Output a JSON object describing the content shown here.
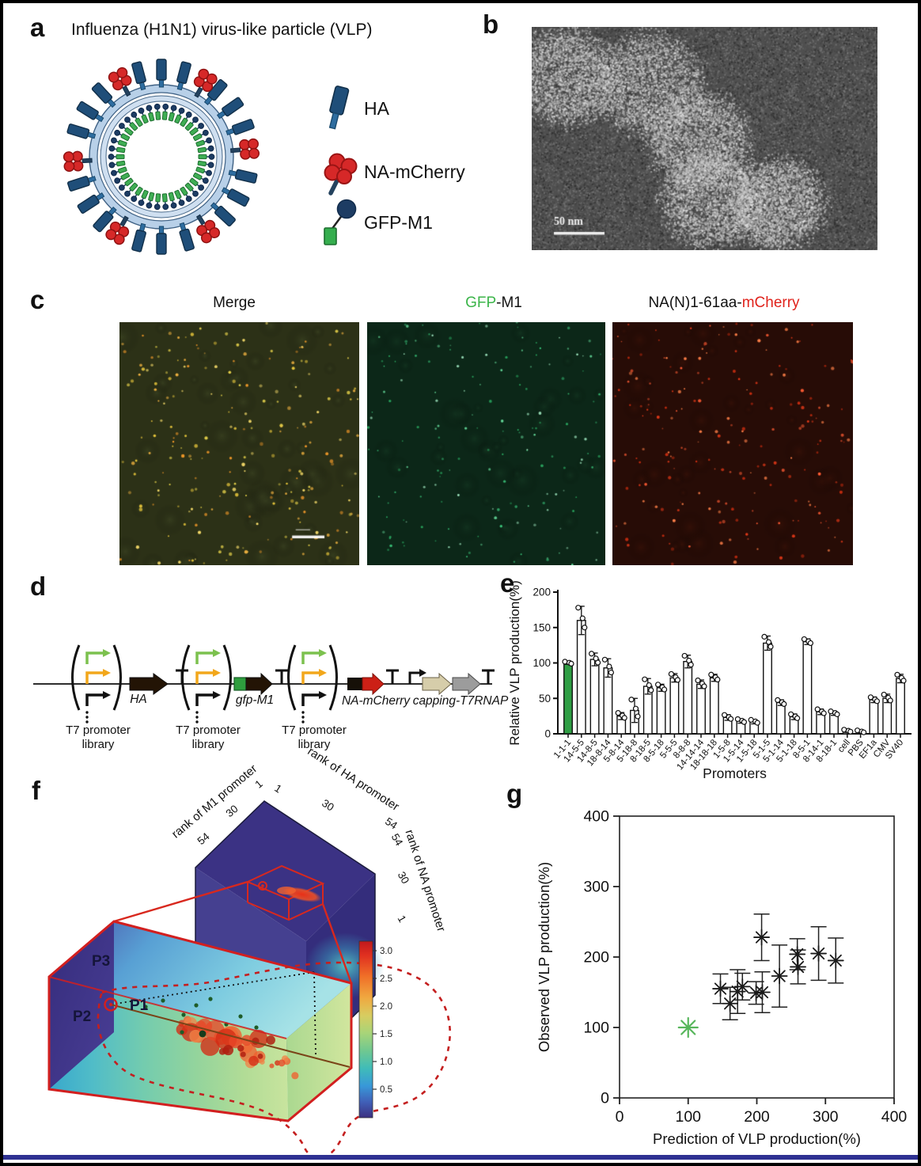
{
  "figure": {
    "panels": {
      "a": {
        "letter": "a",
        "title": "Influenza (H1N1) virus-like particle (VLP)",
        "legend": [
          {
            "icon": "ha-spike-icon",
            "label": "HA"
          },
          {
            "icon": "na-cluster-icon",
            "label": "NA-mCherry"
          },
          {
            "icon": "gfp-m1-icon",
            "label": "GFP-M1"
          }
        ]
      },
      "b": {
        "letter": "b",
        "scalebar": "50 nm"
      },
      "c": {
        "letter": "c",
        "titles": {
          "merge": "Merge",
          "gfp": "GFP",
          "gfp_suffix": "-M1",
          "na_prefix": "NA(N)1-61aa-",
          "mcherry": "mCherry"
        }
      },
      "d": {
        "letter": "d",
        "library_line1": "T7 promoter",
        "library_line2": "library",
        "genes": {
          "ha": "HA",
          "gfp_m1": "gfp-M1",
          "na_mcherry": "NA-mCherry",
          "capping": "capping-T7RNAP"
        }
      },
      "e": {
        "letter": "e"
      },
      "f": {
        "letter": "f",
        "axis_m1": "rank of M1 promoter",
        "axis_ha": "rank of HA promoter",
        "axis_na": "rank of NA promoter",
        "m1_ticks": [
          "1",
          "30",
          "54"
        ],
        "ha_ticks": [
          "1",
          "30",
          "54"
        ],
        "na_ticks": [
          "54",
          "30",
          "1"
        ],
        "colorbar_ticks": [
          "3.0",
          "2.5",
          "2.0",
          "1.5",
          "1.0",
          "0.5"
        ],
        "labels": {
          "p1": "P1",
          "p2": "P2",
          "p3": "P3"
        }
      },
      "g": {
        "letter": "g"
      }
    },
    "colors": {
      "highlight_green": "#2f9e44",
      "gfp_text_green": "#3cb54a",
      "mcherry_text_red": "#e0231c",
      "blue_rule": "#2e3192",
      "merge_bg": "#2c3117",
      "gfp_bg": "#0c2718",
      "mcherry_bg": "#270c06"
    }
  },
  "chart_data": [
    {
      "id": "relative-vlp-production",
      "type": "bar",
      "ylabel": "Relative VLP production(%)",
      "xlabel": "Promoters",
      "ylim": [
        0,
        200
      ],
      "yticks": [
        0,
        50,
        100,
        150,
        200
      ],
      "categories": [
        "1-1-1",
        "14-5-5",
        "14-8-5",
        "18-8-14",
        "5-8-14",
        "5-18-8",
        "8-18-5",
        "8-5-18",
        "5-5-5",
        "8-8-8",
        "14-14-14",
        "18-18-18",
        "1-5-8",
        "1-5-14",
        "1-5-18",
        "5-1-5",
        "5-1-14",
        "5-1-18",
        "8-5-1",
        "8-14-1",
        "8-18-1",
        "cell",
        "PBS",
        "EF1a",
        "CMV",
        "SV40"
      ],
      "values": [
        100,
        160,
        105,
        93,
        25,
        33,
        67,
        65,
        79,
        102,
        70,
        79,
        23,
        18,
        17,
        128,
        44,
        24,
        130,
        31,
        29,
        4,
        3,
        48,
        50,
        78
      ],
      "errors": [
        2,
        20,
        9,
        13,
        5,
        17,
        11,
        5,
        6,
        9,
        6,
        5,
        4,
        3,
        3,
        10,
        4,
        4,
        4,
        4,
        3,
        2,
        2,
        4,
        6,
        6
      ],
      "highlight_index": 0,
      "points_per_bar": 3,
      "legend_position": "none",
      "grid": false
    },
    {
      "id": "prediction-vs-observed",
      "type": "scatter",
      "xlabel": "Prediction of VLP production(%)",
      "ylabel": "Observed VLP production(%)",
      "xlim": [
        0,
        400
      ],
      "ylim": [
        0,
        400
      ],
      "xticks": [
        0,
        100,
        200,
        300,
        400
      ],
      "yticks": [
        0,
        100,
        200,
        300,
        400
      ],
      "marker": "asterisk",
      "grid": false,
      "reference_point": {
        "x": 100,
        "y": 100,
        "color": "#57b65b"
      },
      "points": [
        {
          "x": 147,
          "y": 155,
          "err": 21
        },
        {
          "x": 161,
          "y": 134,
          "err": 23
        },
        {
          "x": 172,
          "y": 151,
          "err": 31
        },
        {
          "x": 179,
          "y": 158,
          "err": 19
        },
        {
          "x": 199,
          "y": 149,
          "err": 16
        },
        {
          "x": 208,
          "y": 150,
          "err": 29
        },
        {
          "x": 207,
          "y": 228,
          "err": 33
        },
        {
          "x": 233,
          "y": 173,
          "err": 44
        },
        {
          "x": 259,
          "y": 204,
          "err": 22
        },
        {
          "x": 260,
          "y": 186,
          "err": 24
        },
        {
          "x": 290,
          "y": 205,
          "err": 38
        },
        {
          "x": 315,
          "y": 195,
          "err": 32
        }
      ]
    }
  ]
}
